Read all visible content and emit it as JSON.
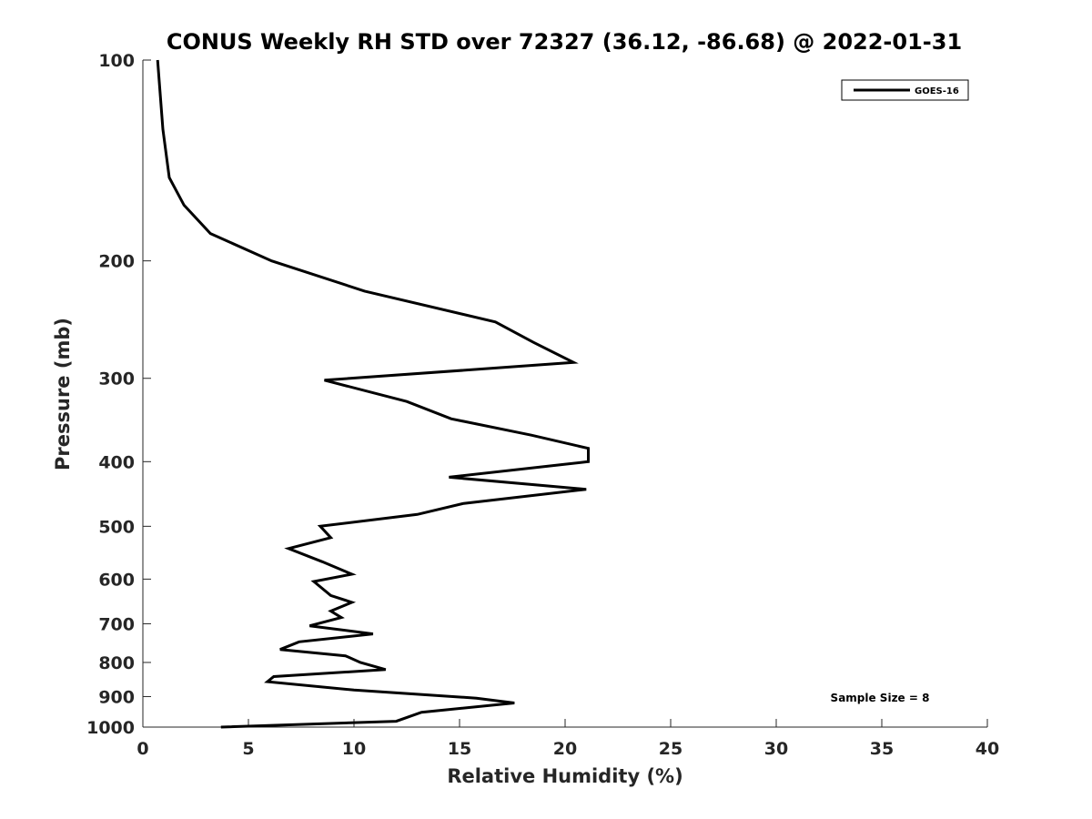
{
  "chart_data": {
    "type": "line",
    "title": "CONUS Weekly RH STD over 72327 (36.12, -86.68) @ 2022-01-31",
    "xlabel": "Relative Humidity (%)",
    "ylabel": "Pressure (mb)",
    "xlim": [
      0,
      40
    ],
    "ylim": [
      100,
      1000
    ],
    "yscale": "log",
    "y_reversed": true,
    "grid": false,
    "legend_position": "top-right",
    "x_ticks": [
      0,
      5,
      10,
      15,
      20,
      25,
      30,
      35,
      40
    ],
    "x_tick_labels": [
      "0",
      "5",
      "10",
      "15",
      "20",
      "25",
      "30",
      "35",
      "40"
    ],
    "y_ticks": [
      100,
      200,
      300,
      400,
      500,
      600,
      700,
      800,
      900,
      1000
    ],
    "y_tick_labels": [
      "100",
      "200",
      "300",
      "400",
      "500",
      "600",
      "700",
      "800",
      "900",
      "1000"
    ],
    "series": [
      {
        "name": "GOES-16",
        "color": "#000000",
        "points": [
          [
            0.7,
            100
          ],
          [
            0.95,
            127
          ],
          [
            1.25,
            150
          ],
          [
            1.95,
            165
          ],
          [
            3.2,
            182
          ],
          [
            6.1,
            200
          ],
          [
            10.5,
            222
          ],
          [
            16.7,
            247
          ],
          [
            18.5,
            265
          ],
          [
            20.4,
            284
          ],
          [
            8.6,
            302
          ],
          [
            12.5,
            325
          ],
          [
            14.6,
            345
          ],
          [
            18.4,
            365
          ],
          [
            21.1,
            382
          ],
          [
            21.1,
            400
          ],
          [
            14.5,
            422
          ],
          [
            21.0,
            440
          ],
          [
            15.2,
            462
          ],
          [
            13.0,
            480
          ],
          [
            8.4,
            500
          ],
          [
            8.9,
            520
          ],
          [
            6.9,
            540
          ],
          [
            8.5,
            565
          ],
          [
            9.9,
            590
          ],
          [
            8.1,
            605
          ],
          [
            8.9,
            635
          ],
          [
            9.9,
            650
          ],
          [
            8.9,
            670
          ],
          [
            9.4,
            685
          ],
          [
            7.9,
            705
          ],
          [
            10.9,
            725
          ],
          [
            7.4,
            745
          ],
          [
            6.5,
            765
          ],
          [
            9.6,
            782
          ],
          [
            10.3,
            800
          ],
          [
            11.5,
            820
          ],
          [
            6.2,
            840
          ],
          [
            5.9,
            855
          ],
          [
            10.0,
            880
          ],
          [
            15.8,
            905
          ],
          [
            17.6,
            920
          ],
          [
            13.2,
            950
          ],
          [
            12.0,
            980
          ],
          [
            3.7,
            1000
          ]
        ]
      }
    ],
    "annotations": [
      "Sample Size = 8"
    ]
  }
}
